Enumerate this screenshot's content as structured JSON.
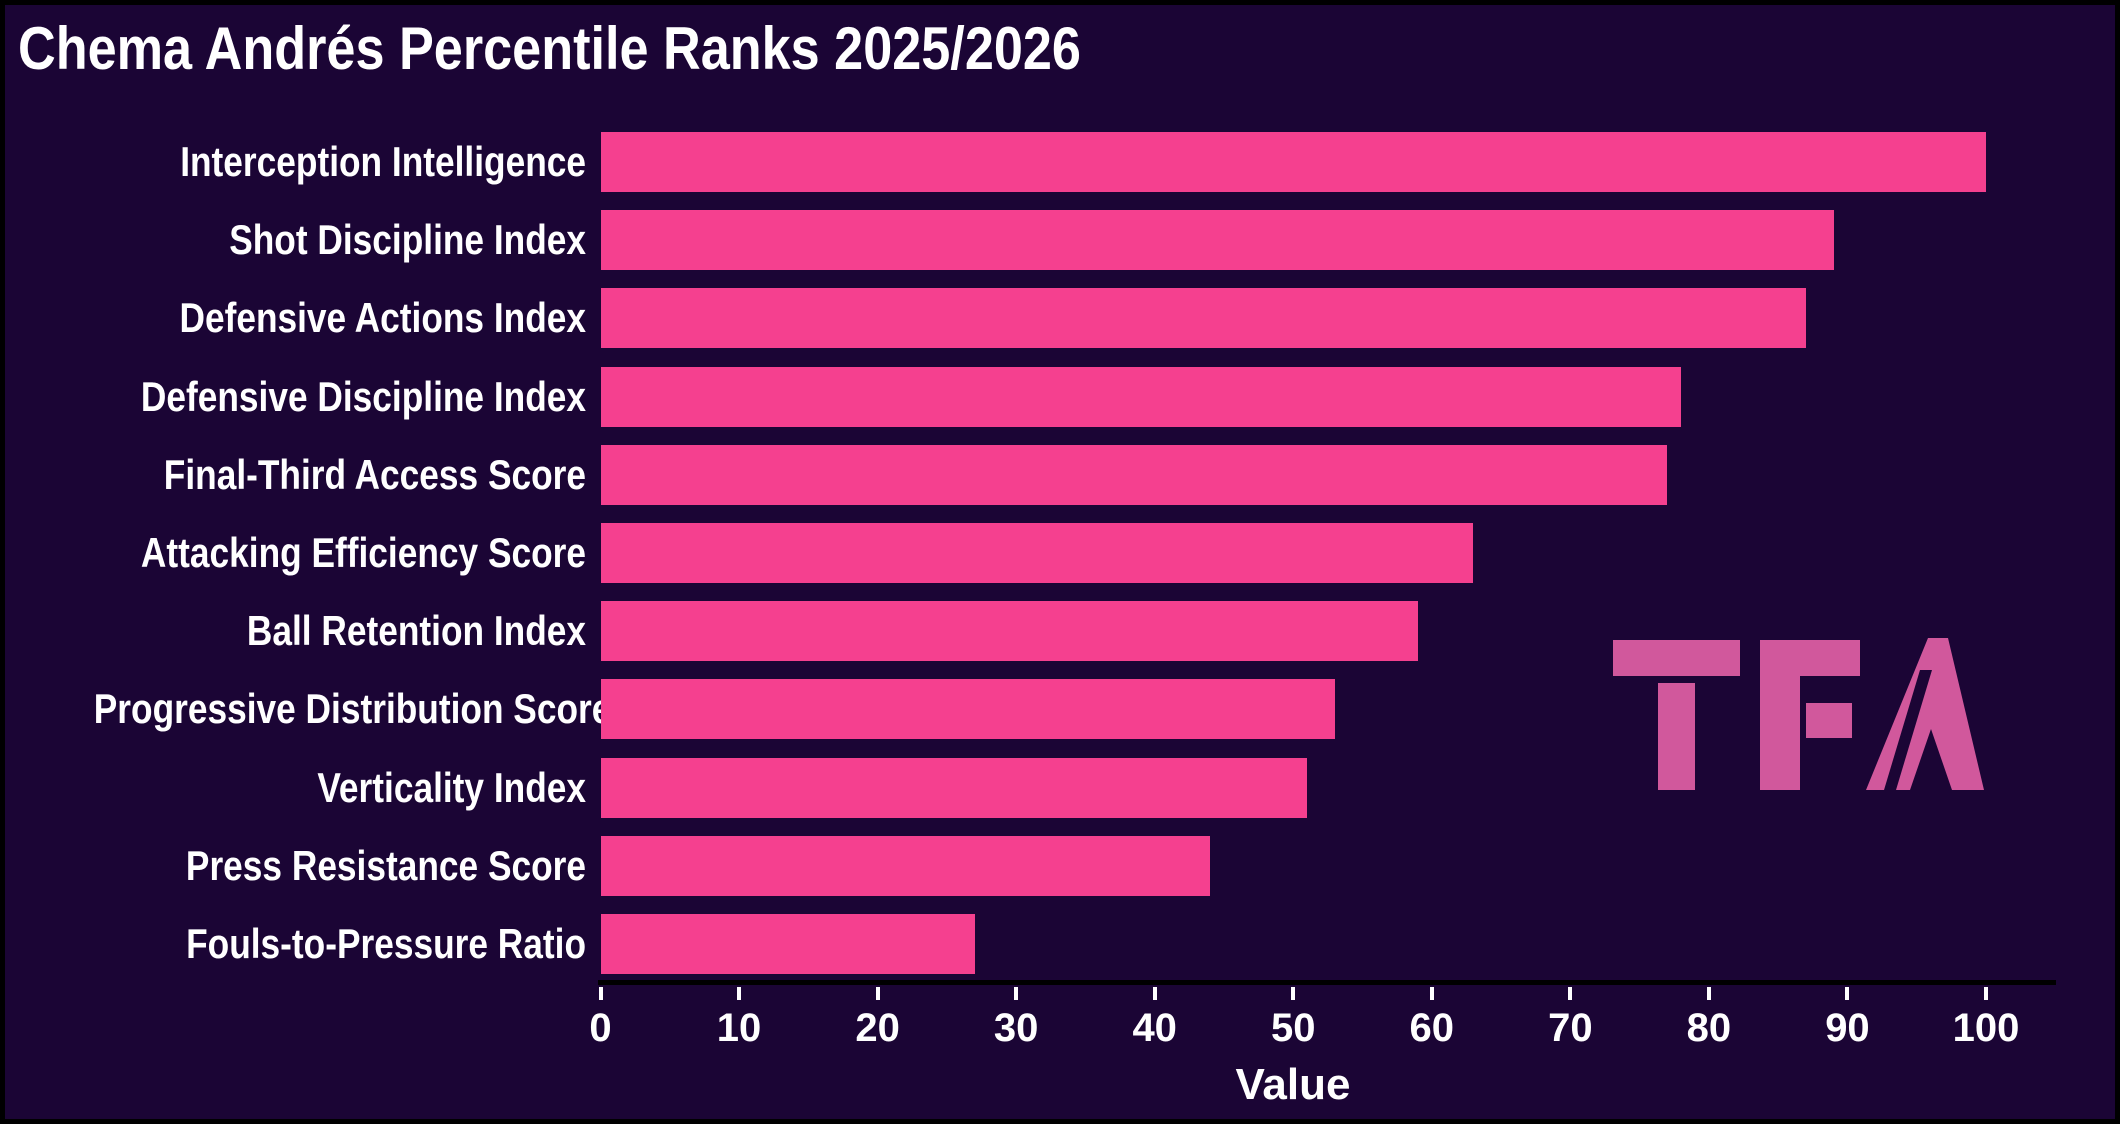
{
  "title": "Chema Andrés Percentile Ranks 2025/2026",
  "chart_data": {
    "type": "bar",
    "orientation": "horizontal",
    "title": "Chema Andrés Percentile Ranks 2025/2026",
    "categories": [
      "Interception Intelligence",
      "Shot Discipline Index",
      "Defensive Actions Index",
      "Defensive Discipline Index",
      "Final-Third Access Score",
      "Attacking Efficiency Score",
      "Ball Retention Index",
      "Progressive Distribution Score",
      "Verticality Index",
      "Press Resistance Score",
      "Fouls-to-Pressure Ratio"
    ],
    "values": [
      100,
      89,
      87,
      78,
      77,
      63,
      59,
      53,
      51,
      44,
      27
    ],
    "xlabel": "Value",
    "xlim": [
      0,
      100
    ],
    "xticks": [
      0,
      10,
      20,
      30,
      40,
      50,
      60,
      70,
      80,
      90,
      100
    ],
    "grid": false,
    "legend": false,
    "colors": {
      "bar": "#f5408f",
      "background": "#1b0535",
      "text": "#ffffff",
      "axis_line": "#000000",
      "tick": "#ffffff"
    }
  },
  "logo": {
    "text": "TFA",
    "color": "#d1589c"
  }
}
